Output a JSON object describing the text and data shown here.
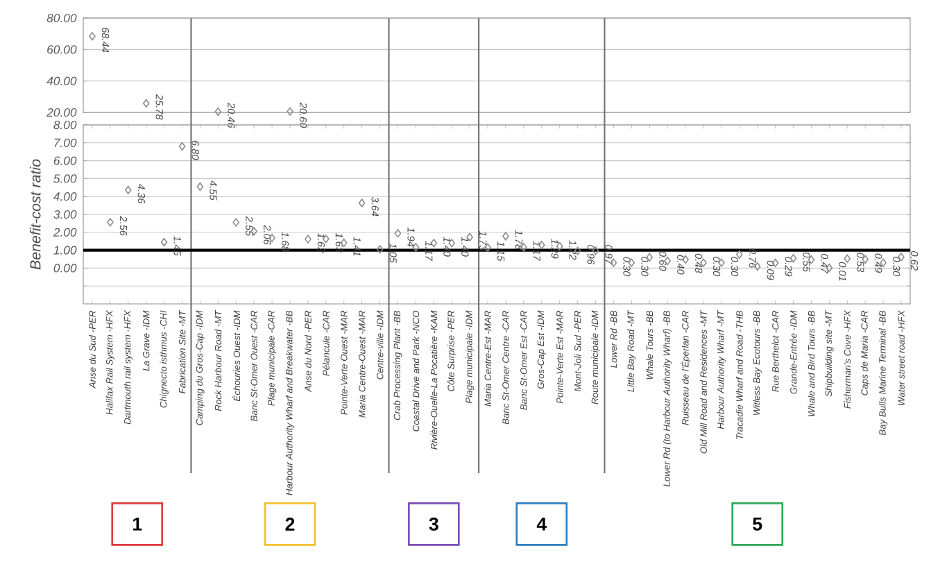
{
  "chart_data": [
    {
      "type": "scatter",
      "categories": [
        null,
        null,
        null,
        null,
        null,
        null,
        null,
        null,
        null,
        null,
        null,
        null,
        null,
        null,
        null,
        null,
        null,
        null,
        null,
        null,
        null,
        null,
        null,
        null,
        null,
        null,
        null,
        null,
        null,
        null,
        null,
        null,
        null,
        null,
        null,
        null,
        null,
        null,
        null,
        null,
        null,
        null,
        null,
        null,
        null,
        null
      ],
      "series": [
        {
          "color": "#8c8c8c",
          "values": [
            68.44,
            null,
            null,
            25.78,
            null,
            null,
            null,
            20.46,
            null,
            null,
            null,
            20.6,
            null,
            null,
            null,
            null,
            null,
            null,
            null,
            null,
            null,
            null,
            null,
            null,
            null,
            null,
            null,
            null,
            null,
            null,
            null,
            null,
            null,
            null,
            null,
            null,
            null,
            null,
            null,
            null,
            null,
            null,
            null,
            null,
            null,
            null
          ],
          "value_labels": [
            "68.44",
            null,
            null,
            "25.78",
            null,
            null,
            null,
            "20.46",
            null,
            null,
            null,
            "20.60",
            null,
            null,
            null,
            null,
            null,
            null,
            null,
            null,
            null,
            null,
            null,
            null,
            null,
            null,
            null,
            null,
            null,
            null,
            null,
            null,
            null,
            null,
            null,
            null,
            null,
            null,
            null,
            null,
            null,
            null,
            null,
            null,
            null,
            null
          ]
        }
      ],
      "marker": "diamond",
      "ylim": [
        20,
        80
      ],
      "yticks": [
        {
          "value": 20,
          "label": "20.00"
        },
        {
          "value": 40,
          "label": "40.00"
        },
        {
          "value": 60,
          "label": "60.00"
        },
        {
          "value": 80,
          "label": "80.00"
        }
      ],
      "grid": "y",
      "tick_labels": "y"
    },
    {
      "type": "scatter",
      "ylabel": "Benefit-cost ratio",
      "categories": [
        "Anse du Sud -PER",
        "Halifax Rail System -HFX",
        "Dartmouth rail system -HFX",
        "La Grave -IDM",
        "Chignecto isthmus -CHI",
        "Fabrication Site -MT",
        "Camping du Gros-Cap -IDM",
        "Rock Harbour Road -MT",
        "Échouries Ouest -IDM",
        "Banc St-Omer Ouest -CAR",
        "Plage municipale -CAR",
        "Harbour Authority Wharf and Breakwater -BB",
        "Anse du Nord -PER",
        "Pélancule -CAR",
        "Pointe-Verte Ouest -MAR",
        "Maria Centre-Ouest -MAR",
        "Centre-ville -IDM",
        "Crab Processing Plant -BB",
        "Coastal Drive and Park -NCO",
        "Rivière-Ouelle-La Pocatière -KAM",
        "Côte Surprise -PER",
        "Plage municipale -IDM",
        "Maria Centre-Est -MAR",
        "Banc St-Omer Centre -CAR",
        "Banc St-Omer Est -CAR",
        "Gros-Cap Est -IDM",
        "Pointe-Verte Est -MAR",
        "Mont-Joli Sud -PER",
        "Route municipale -IDM",
        "Lower Rd -BB",
        "Little Bay Road -MT",
        "Whale Tours -BB",
        "Lower Rd (to Harbour Authority Wharf) -BB",
        "Ruisseau de l'Éperlan -CAR",
        "Old Mill Road and Residences -MT",
        "Harbour Authority Wharf -MT",
        "Tracadie Wharf and Road -THB",
        "Witless Bay Ecotours -BB",
        "Rue Berthelot -CAR",
        "Grande-Entrée -IDM",
        "Whale and Bird Tours -BB",
        "Shipbuilding site -MT",
        "Fisherman's Cove -HFX",
        "Caps de Maria -CAR",
        "Bay Bulls Marine Terminal -BB",
        "Water street road -HFX"
      ],
      "series": [
        {
          "color": "#8c8c8c",
          "values": [
            null,
            2.56,
            4.36,
            null,
            1.45,
            6.8,
            null,
            null,
            null,
            null,
            null,
            null,
            null,
            null,
            null,
            null,
            null,
            null,
            null,
            null,
            null,
            null,
            null,
            null,
            null,
            null,
            null,
            null,
            null,
            null,
            null,
            null,
            null,
            null,
            null,
            null,
            null,
            null,
            null,
            null,
            null,
            null,
            null,
            null,
            null,
            null
          ],
          "value_labels": [
            null,
            "2.56",
            "4.36",
            null,
            "1.45",
            "6.80",
            null,
            null,
            null,
            null,
            null,
            null,
            null,
            null,
            null,
            null,
            null,
            null,
            null,
            null,
            null,
            null,
            null,
            null,
            null,
            null,
            null,
            null,
            null,
            null,
            null,
            null,
            null,
            null,
            null,
            null,
            null,
            null,
            null,
            null,
            null,
            null,
            null,
            null,
            null,
            null
          ]
        },
        {
          "color": "#8c8c8c",
          "values": [
            null,
            null,
            null,
            null,
            null,
            null,
            4.55,
            null,
            2.55,
            2.06,
            1.68,
            null,
            1.62,
            1.63,
            1.41,
            3.64,
            1.05,
            null,
            null,
            null,
            null,
            null,
            null,
            null,
            null,
            null,
            null,
            null,
            null,
            null,
            null,
            null,
            null,
            null,
            null,
            null,
            null,
            null,
            null,
            null,
            null,
            null,
            null,
            null,
            null,
            null
          ],
          "value_labels": [
            null,
            null,
            null,
            null,
            null,
            null,
            "4.55",
            null,
            "2.55",
            "2.06",
            "1.68",
            null,
            "1.62",
            "1.63",
            "1.41",
            "3.64",
            "1.05",
            null,
            null,
            null,
            null,
            null,
            null,
            null,
            null,
            null,
            null,
            null,
            null,
            null,
            null,
            null,
            null,
            null,
            null,
            null,
            null,
            null,
            null,
            null,
            null,
            null,
            null,
            null,
            null,
            null
          ]
        },
        {
          "color": "#8c8c8c",
          "values": [
            null,
            null,
            null,
            null,
            null,
            null,
            null,
            null,
            null,
            null,
            null,
            null,
            null,
            null,
            null,
            null,
            null,
            1.94,
            1.17,
            1.4,
            1.4,
            1.73,
            null,
            null,
            null,
            null,
            null,
            null,
            null,
            null,
            null,
            null,
            null,
            null,
            null,
            null,
            null,
            null,
            null,
            null,
            null,
            null,
            null,
            null,
            null,
            null
          ],
          "value_labels": [
            null,
            null,
            null,
            null,
            null,
            null,
            null,
            null,
            null,
            null,
            null,
            null,
            null,
            null,
            null,
            null,
            null,
            "1.94",
            "1.17",
            "1.40",
            "1.40",
            "1.73",
            null,
            null,
            null,
            null,
            null,
            null,
            null,
            null,
            null,
            null,
            null,
            null,
            null,
            null,
            null,
            null,
            null,
            null,
            null,
            null,
            null,
            null,
            null,
            null
          ]
        },
        {
          "color": "#8c8c8c",
          "values": [
            null,
            null,
            null,
            null,
            null,
            null,
            null,
            null,
            null,
            null,
            null,
            null,
            null,
            null,
            null,
            null,
            null,
            null,
            null,
            null,
            null,
            null,
            1.15,
            1.78,
            1.17,
            1.29,
            1.22,
            0.96,
            0.97,
            null,
            null,
            null,
            null,
            null,
            null,
            null,
            null,
            null,
            null,
            null,
            null,
            null,
            null,
            null,
            null,
            null
          ],
          "value_labels": [
            null,
            null,
            null,
            null,
            null,
            null,
            null,
            null,
            null,
            null,
            null,
            null,
            null,
            null,
            null,
            null,
            null,
            null,
            null,
            null,
            null,
            null,
            "1.15",
            "1.78",
            "1.17",
            "1.29",
            "1.22",
            "0.96",
            "0.97",
            null,
            null,
            null,
            null,
            null,
            null,
            null,
            null,
            null,
            null,
            null,
            null,
            null,
            null,
            null,
            null,
            null
          ]
        },
        {
          "color": "#8c8c8c",
          "values": [
            null,
            null,
            null,
            null,
            null,
            null,
            null,
            null,
            null,
            null,
            null,
            null,
            null,
            null,
            null,
            null,
            null,
            null,
            null,
            null,
            null,
            null,
            null,
            null,
            null,
            null,
            null,
            null,
            null,
            0.3,
            0.3,
            0.6,
            0.4,
            0.48,
            0.3,
            0.3,
            0.76,
            0.09,
            0.29,
            0.55,
            0.47,
            0.01,
            0.53,
            0.49,
            0.3,
            0.62
          ],
          "value_labels": [
            null,
            null,
            null,
            null,
            null,
            null,
            null,
            null,
            null,
            null,
            null,
            null,
            null,
            null,
            null,
            null,
            null,
            null,
            null,
            null,
            null,
            null,
            null,
            null,
            null,
            null,
            null,
            null,
            null,
            "0.30",
            "0.30",
            "0.60",
            "0.40",
            "0.48",
            "0.30",
            "0.30",
            "0.76",
            "0.09",
            "0.29",
            "0.55",
            "0.47",
            "0.01",
            "0.53",
            "0.49",
            "0.30",
            "0.62"
          ]
        }
      ],
      "marker": "diamond",
      "ylim": [
        -2,
        8
      ],
      "yticks": [
        {
          "value": -1,
          "label": null
        },
        {
          "value": 0,
          "label": "0.00"
        },
        {
          "value": 1,
          "label": "1.00"
        },
        {
          "value": 2,
          "label": "2.00"
        },
        {
          "value": 3,
          "label": "3.00"
        },
        {
          "value": 4,
          "label": "4.00"
        },
        {
          "value": 5,
          "label": "5.00"
        },
        {
          "value": 6,
          "label": "6.00"
        },
        {
          "value": 7,
          "label": "7.00"
        },
        {
          "value": 8,
          "label": "8.00"
        }
      ],
      "grid": "y",
      "ref_lines": [
        {
          "axis": "y",
          "value": 1,
          "color": "#000000"
        }
      ],
      "annotations": [
        "1",
        "2",
        "3",
        "4",
        "5"
      ]
    }
  ]
}
